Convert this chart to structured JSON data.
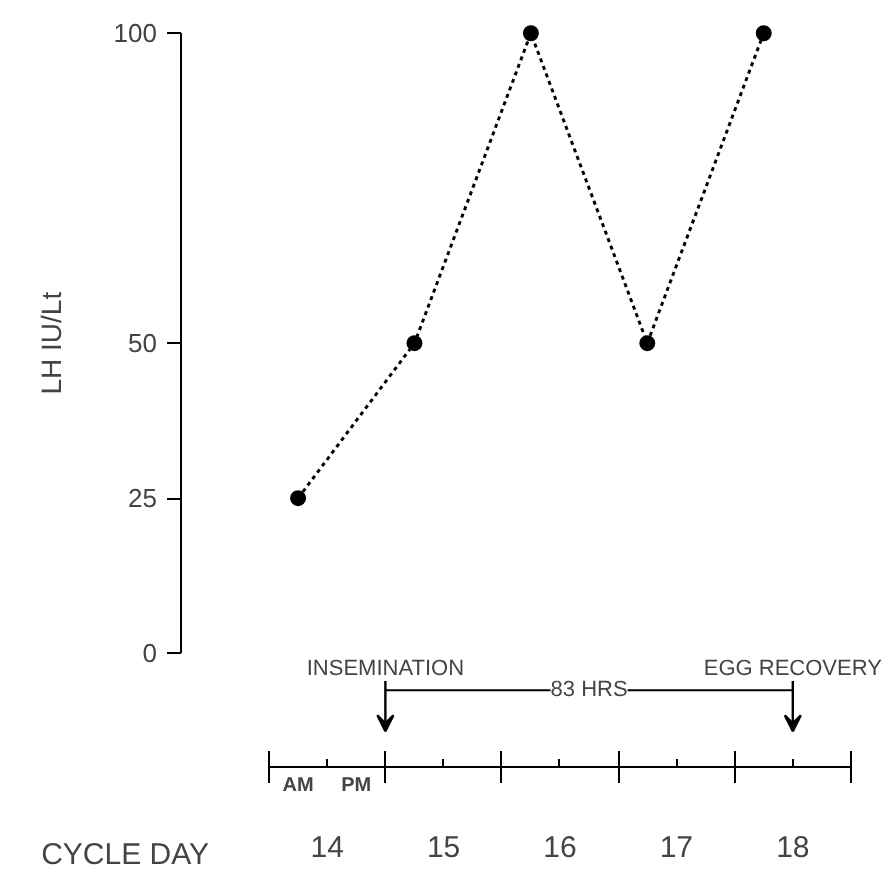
{
  "chart_data": {
    "type": "line",
    "ylabel": "LH IU/Lt",
    "xlabel": "CYCLE DAY",
    "x": [
      13.75,
      14.75,
      15.75,
      16.75,
      17.75
    ],
    "series": [
      {
        "color": "#000000",
        "values": [
          25,
          50,
          100,
          50,
          100
        ]
      }
    ],
    "marker": "circle",
    "line_style": "dotted",
    "grid": false,
    "ylim": [
      0,
      100
    ],
    "yticks": [
      0,
      25,
      50,
      100
    ],
    "xlim": [
      13.5,
      18.5
    ],
    "xticks": [
      14,
      15,
      16,
      17,
      18
    ],
    "annotations": [
      "INSEMINATION",
      "EGG RECOVERY",
      "83 HRS",
      "AM",
      "PM"
    ]
  }
}
